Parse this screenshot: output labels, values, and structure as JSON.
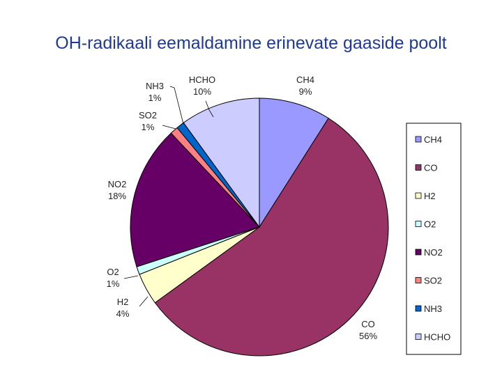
{
  "chart_data": {
    "type": "pie",
    "title": "OH-radikaali eemaldamine erinevate gaaside poolt",
    "slices": [
      {
        "name": "CH4",
        "value": 9,
        "label": "9%",
        "color": "#9999ff"
      },
      {
        "name": "CO",
        "value": 56,
        "label": "56%",
        "color": "#993366"
      },
      {
        "name": "H2",
        "value": 4,
        "label": "4%",
        "color": "#ffffcc"
      },
      {
        "name": "O2",
        "value": 1,
        "label": "1%",
        "color": "#ccffff"
      },
      {
        "name": "NO2",
        "value": 18,
        "label": "18%",
        "color": "#660066"
      },
      {
        "name": "SO2",
        "value": 1,
        "label": "1%",
        "color": "#ff8080"
      },
      {
        "name": "NH3",
        "value": 1,
        "label": "1%",
        "color": "#0066cc"
      },
      {
        "name": "HCHO",
        "value": 10,
        "label": "10%",
        "color": "#ccccff"
      }
    ],
    "legend": [
      "CH4",
      "CO",
      "H2",
      "O2",
      "NO2",
      "SO2",
      "NH3",
      "HCHO"
    ],
    "legend_placement": "right"
  }
}
